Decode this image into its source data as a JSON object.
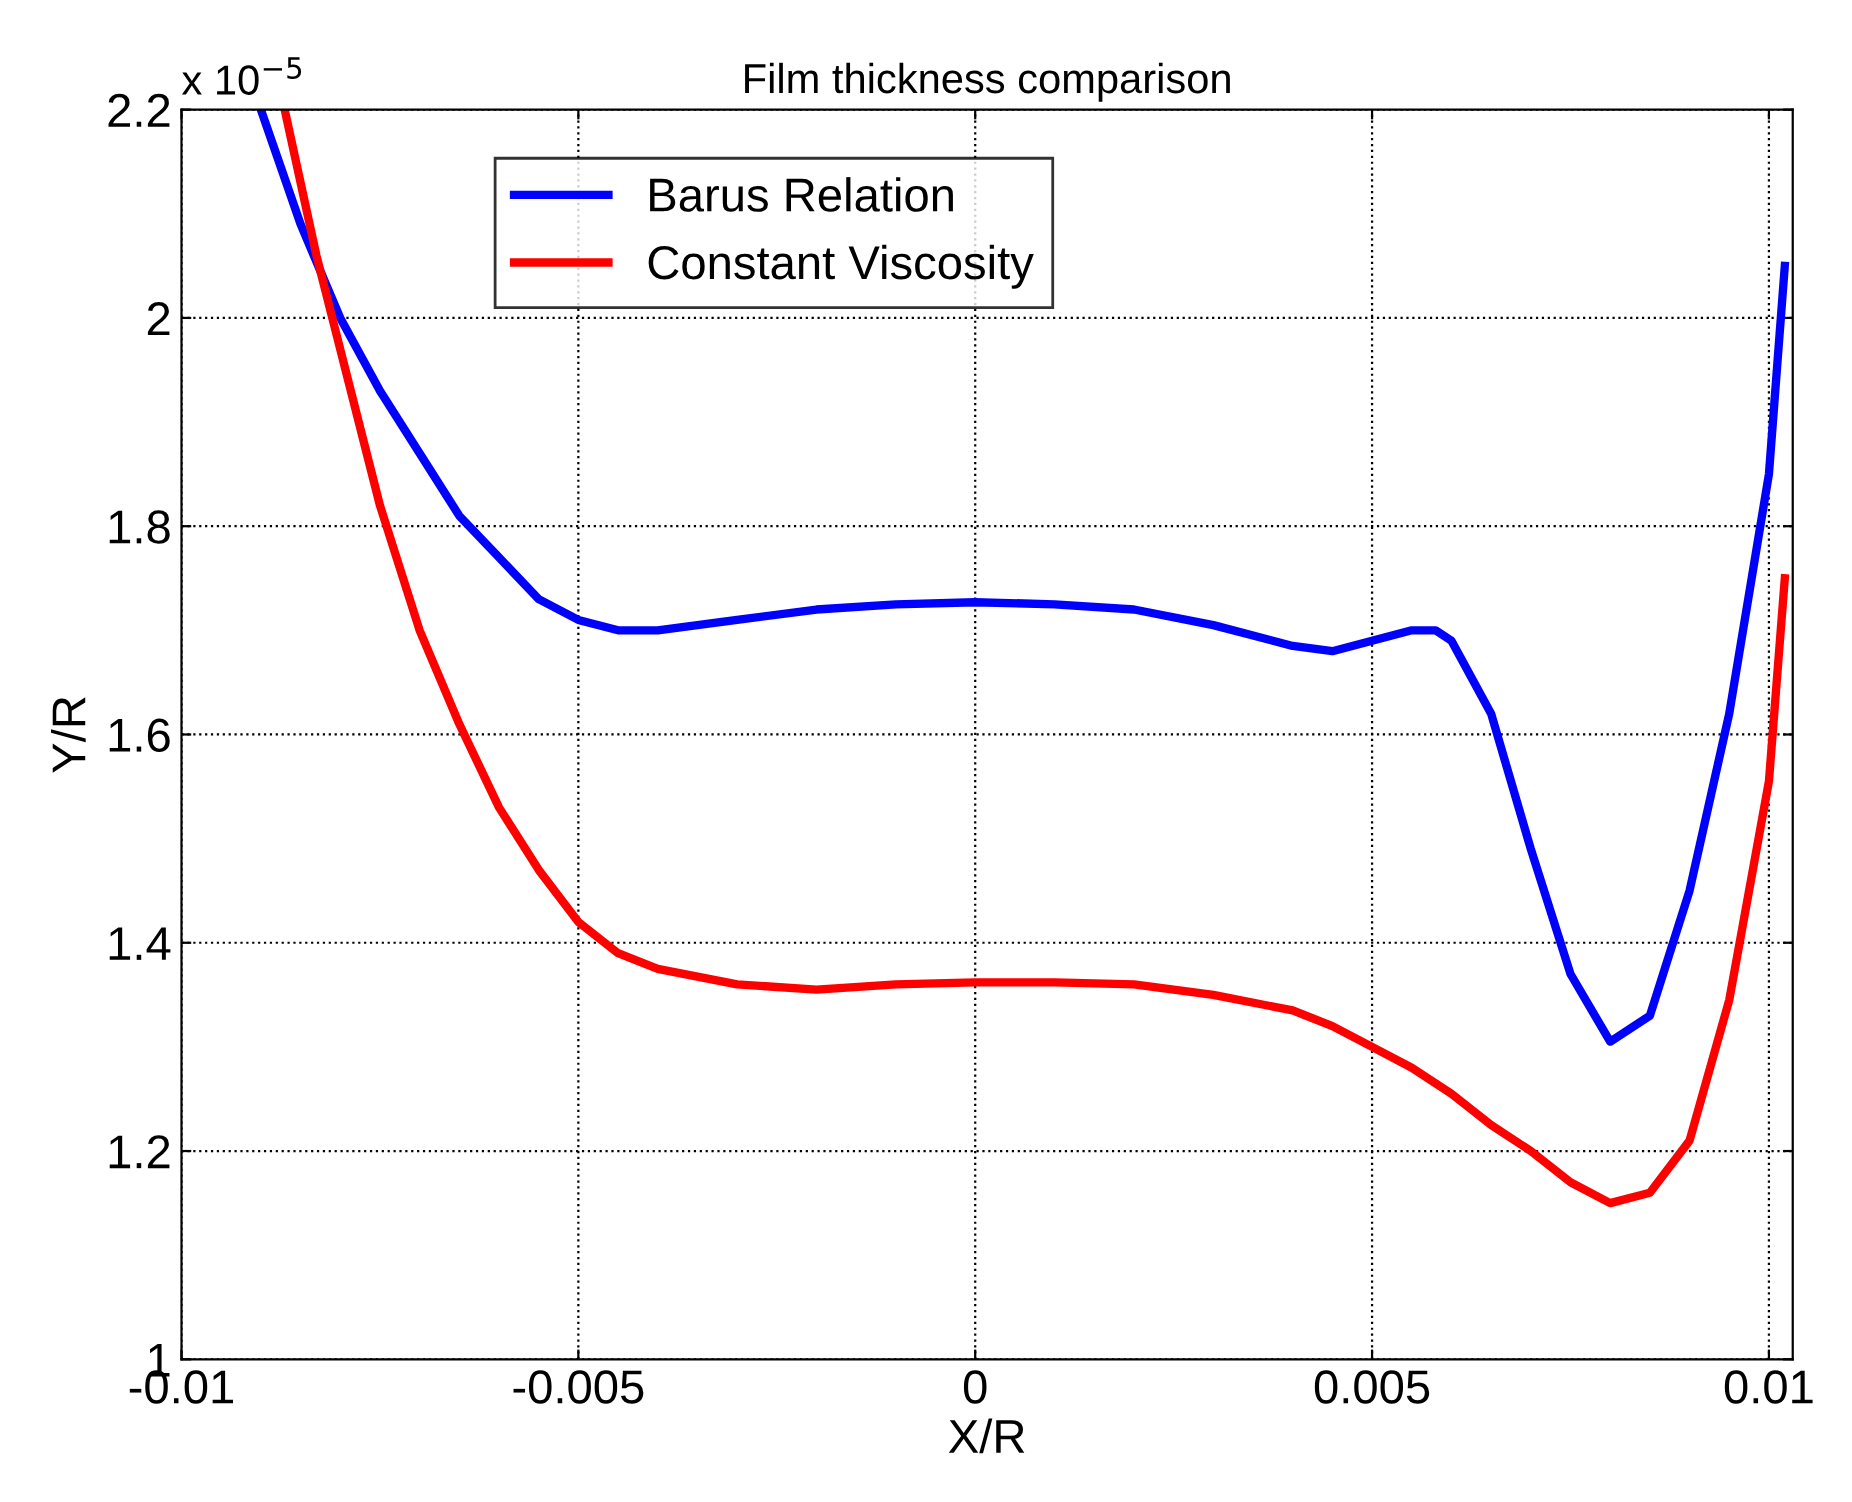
{
  "chart_data": {
    "type": "line",
    "title": "Film thickness comparison",
    "xlabel": "X/R",
    "ylabel": "Y/R",
    "annotations": [
      "x 10$^{−5}$"
    ],
    "xlim": [
      -0.01,
      0.0103
    ],
    "ylim": [
      1,
      2.2
    ],
    "xticks": [
      {
        "value": -0.01,
        "label": "-0.01"
      },
      {
        "value": -0.005,
        "label": "-0.005"
      },
      0,
      {
        "value": 0.005,
        "label": "0.005"
      },
      {
        "value": 0.01,
        "label": "0.01"
      }
    ],
    "yticks": [
      1,
      1.2,
      1.4,
      1.6,
      1.8,
      2,
      2.2
    ],
    "grid": true,
    "legend": "top left",
    "line_style": "solid",
    "marker": "none",
    "series": [
      {
        "name": "Barus Relation",
        "color": "#0000ff",
        "x": [
          -0.009,
          -0.0085,
          -0.008,
          -0.0075,
          -0.007,
          -0.0065,
          -0.006,
          -0.0055,
          -0.005,
          -0.0045,
          -0.004,
          -0.003,
          -0.002,
          -0.001,
          0,
          0.001,
          0.002,
          0.003,
          0.0035,
          0.004,
          0.0045,
          0.005,
          0.0055,
          0.0058,
          0.006,
          0.0065,
          0.007,
          0.0075,
          0.008,
          0.0085,
          0.009,
          0.0095,
          0.01,
          0.0102
        ],
        "values": [
          2.2,
          2.09,
          2.0,
          1.93,
          1.87,
          1.81,
          1.77,
          1.73,
          1.71,
          1.7,
          1.7,
          1.71,
          1.72,
          1.725,
          1.727,
          1.725,
          1.72,
          1.705,
          1.695,
          1.685,
          1.68,
          1.69,
          1.7,
          1.7,
          1.69,
          1.62,
          1.49,
          1.37,
          1.305,
          1.33,
          1.45,
          1.62,
          1.85,
          2.05
        ]
      },
      {
        "name": "Constant Viscosity",
        "color": "#ff0000",
        "x": [
          -0.0087,
          -0.0083,
          -0.008,
          -0.0075,
          -0.007,
          -0.0065,
          -0.006,
          -0.0055,
          -0.005,
          -0.0045,
          -0.004,
          -0.003,
          -0.002,
          -0.001,
          0,
          0.001,
          0.002,
          0.003,
          0.004,
          0.0045,
          0.005,
          0.0055,
          0.006,
          0.0065,
          0.007,
          0.0075,
          0.008,
          0.0085,
          0.009,
          0.0095,
          0.01,
          0.0102
        ],
        "values": [
          2.2,
          2.06,
          1.97,
          1.82,
          1.7,
          1.61,
          1.53,
          1.47,
          1.42,
          1.39,
          1.375,
          1.36,
          1.355,
          1.36,
          1.362,
          1.362,
          1.36,
          1.35,
          1.335,
          1.32,
          1.3,
          1.28,
          1.255,
          1.225,
          1.2,
          1.17,
          1.15,
          1.16,
          1.21,
          1.345,
          1.555,
          1.75
        ]
      }
    ]
  }
}
